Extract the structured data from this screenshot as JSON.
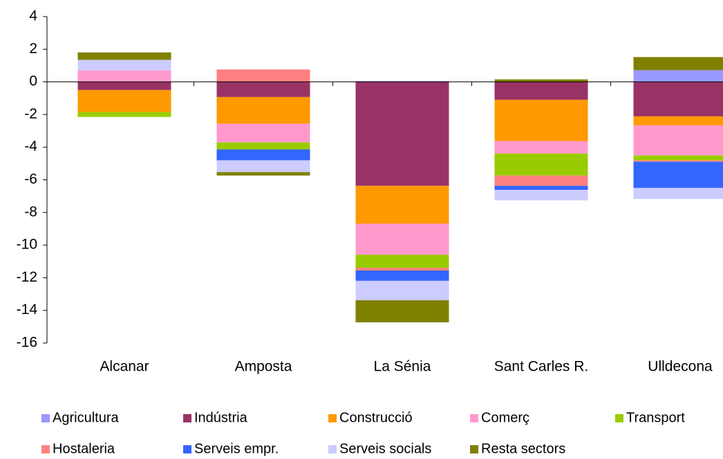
{
  "chart_data": {
    "type": "stacked_bar",
    "categories": [
      "Alcanar",
      "Amposta",
      "La Sénia",
      "Sant Carles R.",
      "Ulldecona"
    ],
    "series": [
      {
        "name": "Agricultura",
        "color": "#9999ff",
        "values": [
          0,
          0,
          0.05,
          0,
          0.72
        ]
      },
      {
        "name": "Indústria",
        "color": "#993366",
        "values": [
          -0.5,
          -0.93,
          -6.37,
          -1.1,
          -2.11
        ]
      },
      {
        "name": "Construcció",
        "color": "#ff9900",
        "values": [
          -1.35,
          -1.64,
          -2.32,
          -2.53,
          -0.55
        ]
      },
      {
        "name": "Comerç",
        "color": "#ff99cc",
        "values": [
          0.7,
          -1.14,
          -1.9,
          -0.76,
          -1.85
        ]
      },
      {
        "name": "Transport",
        "color": "#99cc00",
        "values": [
          -0.3,
          -0.43,
          -0.8,
          -1.35,
          -0.3
        ]
      },
      {
        "name": "Hostaleria",
        "color": "#ff8080",
        "values": [
          0,
          0.76,
          -0.17,
          -0.63,
          -0.08
        ]
      },
      {
        "name": "Serveis empr.",
        "color": "#3366ff",
        "values": [
          0,
          -0.67,
          -0.63,
          -0.25,
          -1.61
        ]
      },
      {
        "name": "Serveis socials",
        "color": "#ccccff",
        "values": [
          0.65,
          -0.72,
          -1.19,
          -0.64,
          -0.67
        ]
      },
      {
        "name": "Resta sectors",
        "color": "#808000",
        "values": [
          0.45,
          -0.21,
          -1.35,
          0.15,
          0.8
        ]
      }
    ],
    "ylim": [
      -16,
      4
    ],
    "yticks": [
      -16,
      -14,
      -12,
      -10,
      -8,
      -6,
      -4,
      -2,
      0,
      2,
      4
    ]
  }
}
